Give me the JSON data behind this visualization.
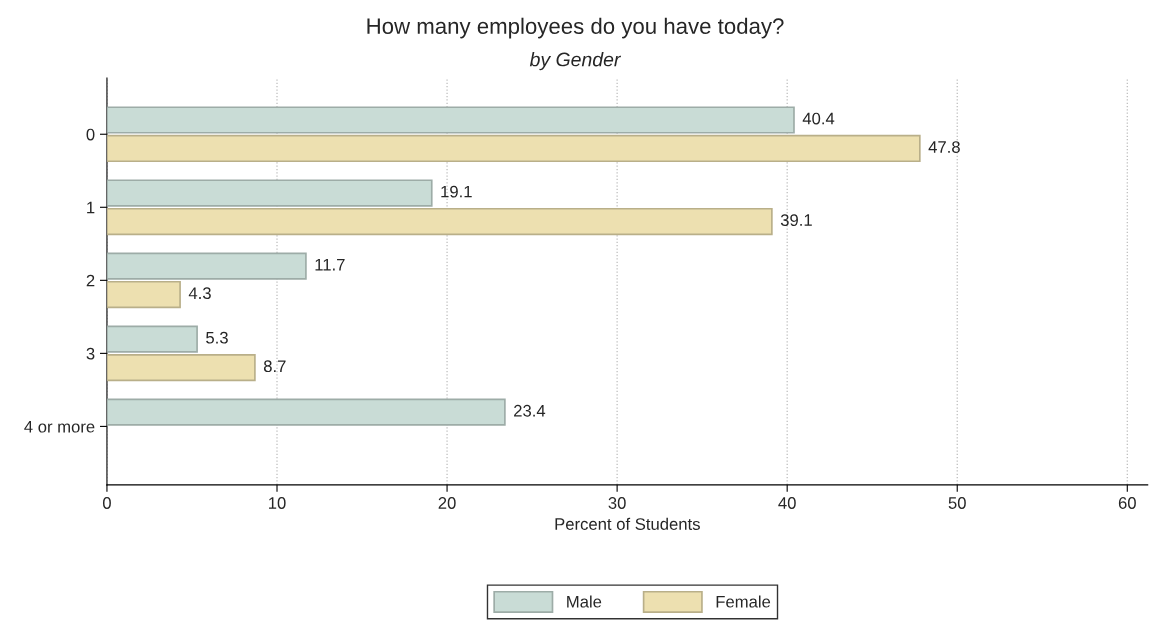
{
  "chart_data": {
    "type": "bar",
    "orientation": "horizontal",
    "title": "How many employees do you have today?",
    "subtitle": "by Gender",
    "xlabel": "Percent of Students",
    "categories": [
      "0",
      "1",
      "2",
      "3",
      "4 or more"
    ],
    "series": [
      {
        "name": "Male",
        "color": "#c9dcd6",
        "values": [
          40.4,
          19.1,
          11.7,
          5.3,
          23.4
        ]
      },
      {
        "name": "Female",
        "color": "#ede0b0",
        "values": [
          47.8,
          39.1,
          4.3,
          8.7,
          null
        ]
      }
    ],
    "xlim": [
      0,
      61.2
    ],
    "xticks": [
      0,
      10,
      20,
      30,
      40,
      50,
      60
    ],
    "grid": "x",
    "legend": "bottom",
    "data_labels": true
  }
}
